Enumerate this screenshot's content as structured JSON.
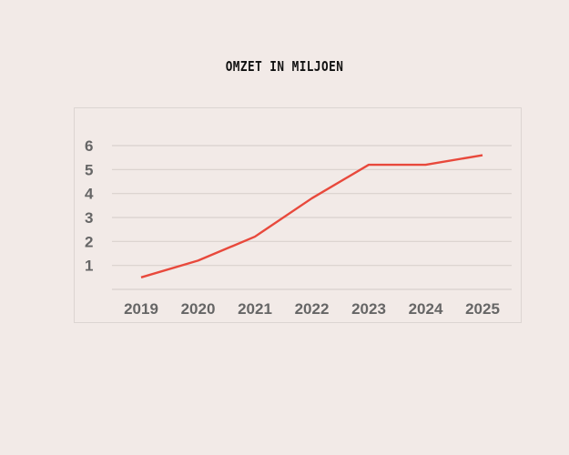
{
  "chart_data": {
    "type": "line",
    "title": "OMZET IN MILJOEN",
    "xlabel": "",
    "ylabel": "",
    "categories": [
      "2019",
      "2020",
      "2021",
      "2022",
      "2023",
      "2024",
      "2025"
    ],
    "series": [
      {
        "name": "Omzet",
        "values": [
          0.5,
          1.2,
          2.2,
          3.8,
          5.2,
          5.2,
          5.6
        ],
        "color": "#e8493c"
      }
    ],
    "yticks": [
      1,
      2,
      3,
      4,
      5,
      6
    ],
    "ylim": [
      0,
      6
    ],
    "grid": true,
    "legend": "none"
  }
}
